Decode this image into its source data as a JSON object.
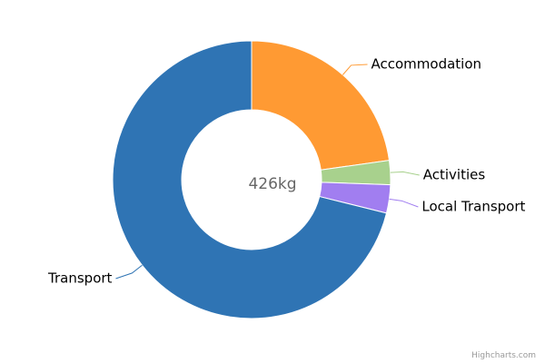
{
  "chart_data": {
    "type": "donut",
    "center_label": "426kg",
    "categories": [
      "Accommodation",
      "Activities",
      "Local Transport",
      "Transport"
    ],
    "values": [
      97,
      12,
      14,
      303
    ],
    "colors": [
      "#ff9a33",
      "#a8d18d",
      "#a17ef0",
      "#2f74b4"
    ],
    "credits": "Highcharts.com"
  }
}
